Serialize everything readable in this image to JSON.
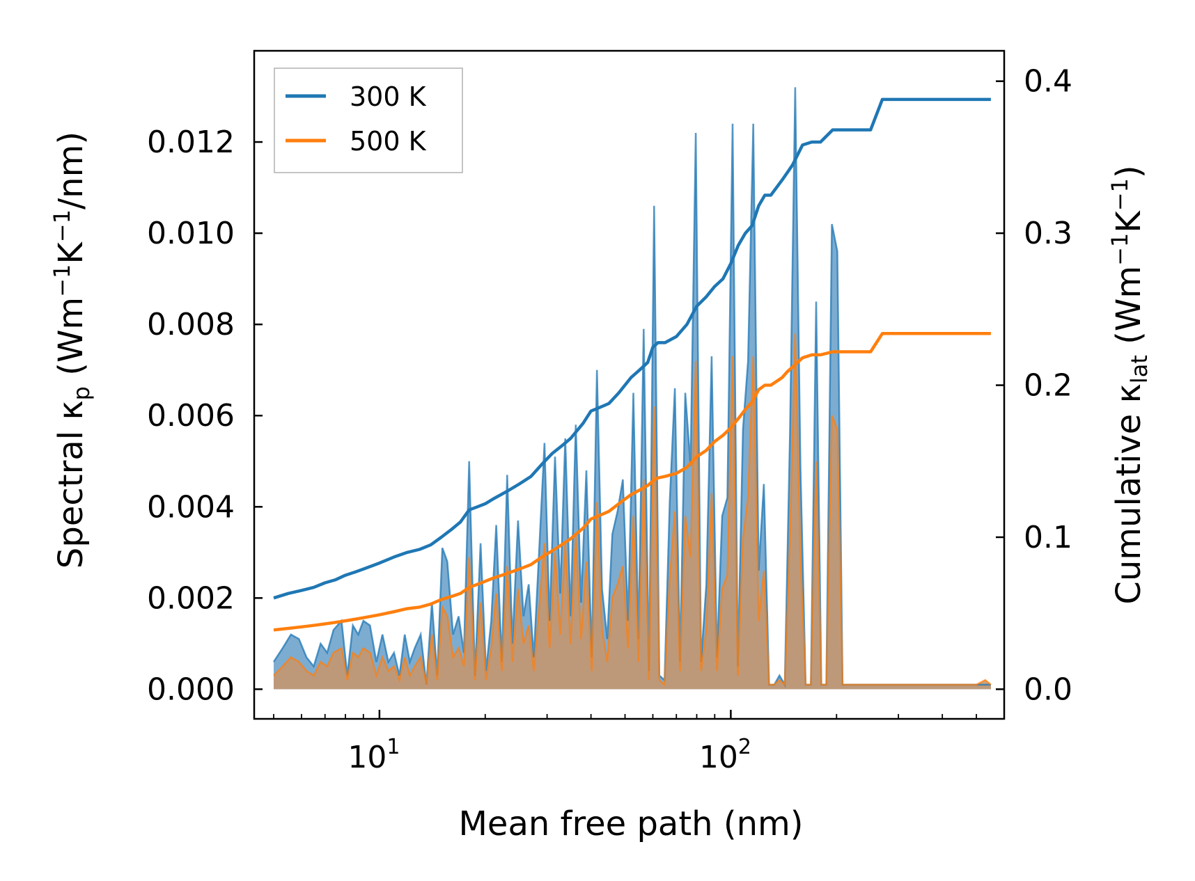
{
  "chart_data": {
    "type": "line",
    "xscale": "log",
    "xlabel": "Mean free path (nm)",
    "ylabel_left": {
      "main": "Spectral κ",
      "sub": "p",
      "units": " (Wm",
      "sup1": "−1",
      "k": "K",
      "sup2": "−1",
      "end": "/nm)"
    },
    "ylabel_right": {
      "main": "Cumulative κ",
      "sub": "lat",
      "units": " (Wm",
      "sup1": "−1",
      "k": "K",
      "sup2": "−1",
      "end": ")"
    },
    "xlim": [
      4.4,
      600
    ],
    "ylim_left": [
      -0.00065,
      0.014
    ],
    "ylim_right": [
      -0.0195,
      0.42
    ],
    "x_ticks": [
      {
        "value": 10,
        "base": "10",
        "exp": "1"
      },
      {
        "value": 100,
        "base": "10",
        "exp": "2"
      }
    ],
    "y_ticks_left": [
      "0.000",
      "0.002",
      "0.004",
      "0.006",
      "0.008",
      "0.010",
      "0.012"
    ],
    "y_ticks_right": [
      "0.0",
      "0.1",
      "0.2",
      "0.3",
      "0.4"
    ],
    "legend": {
      "position": "top-left",
      "entries": [
        "300 K",
        "500 K"
      ]
    },
    "colors": {
      "s300": "#1f77b4",
      "s500": "#ff7f0e",
      "fill300": "#6fa3cc",
      "fill500": "#c8956b"
    },
    "series": [
      {
        "name": "300 K",
        "cumulative": {
          "x": [
            5,
            5.5,
            6,
            6.5,
            7,
            7.5,
            8,
            8.5,
            9,
            10,
            11,
            12,
            13,
            14,
            15,
            16,
            17,
            18,
            19,
            20,
            21,
            23,
            25,
            27,
            29,
            31,
            33,
            35,
            38,
            40,
            42,
            45,
            48,
            52,
            55,
            58,
            60,
            62,
            65,
            70,
            75,
            80,
            85,
            90,
            95,
            100,
            105,
            110,
            115,
            120,
            125,
            130,
            140,
            145,
            150,
            160,
            170,
            180,
            195,
            200,
            250,
            270,
            550
          ],
          "y": [
            0.06,
            0.063,
            0.065,
            0.067,
            0.07,
            0.072,
            0.075,
            0.077,
            0.079,
            0.083,
            0.087,
            0.09,
            0.092,
            0.095,
            0.1,
            0.105,
            0.11,
            0.118,
            0.12,
            0.122,
            0.125,
            0.13,
            0.135,
            0.14,
            0.148,
            0.155,
            0.16,
            0.165,
            0.175,
            0.183,
            0.185,
            0.188,
            0.195,
            0.205,
            0.21,
            0.215,
            0.225,
            0.228,
            0.228,
            0.232,
            0.24,
            0.252,
            0.258,
            0.265,
            0.27,
            0.28,
            0.292,
            0.3,
            0.305,
            0.318,
            0.325,
            0.325,
            0.335,
            0.34,
            0.345,
            0.358,
            0.36,
            0.36,
            0.368,
            0.368,
            0.368,
            0.388,
            0.388
          ]
        },
        "spectral": {
          "x": [
            5,
            5.3,
            5.6,
            5.9,
            6.2,
            6.5,
            6.8,
            7.1,
            7.4,
            7.8,
            8.1,
            8.4,
            8.7,
            9,
            9.4,
            9.8,
            10.2,
            10.6,
            11,
            11.4,
            11.8,
            12.2,
            12.6,
            13.1,
            13.6,
            14.1,
            14.6,
            15.1,
            15.6,
            16.2,
            16.8,
            17.4,
            18,
            18.7,
            19.4,
            20.1,
            20.8,
            21.5,
            22.3,
            23.1,
            23.9,
            24.8,
            25.7,
            26.6,
            27.5,
            28.5,
            29.5,
            30.5,
            31.6,
            32.7,
            33.8,
            35,
            36.2,
            37.5,
            38.8,
            40.2,
            41.6,
            43,
            44.5,
            46,
            47.6,
            49.3,
            51,
            52.8,
            54.6,
            56.5,
            58.5,
            60.5,
            62.6,
            64.8,
            67,
            69.3,
            71.7,
            74.2,
            76.8,
            79.5,
            82.3,
            85.2,
            88.2,
            91.3,
            94.5,
            97.8,
            101.2,
            104.7,
            108.3,
            112,
            115.9,
            120,
            124.2,
            128.5,
            133,
            137.6,
            142.4,
            147.4,
            152.5,
            157.8,
            163.3,
            169,
            175,
            181,
            187,
            194,
            201,
            208,
            215,
            223,
            231,
            239,
            247,
            256,
            265,
            274,
            284,
            300,
            400,
            500,
            530,
            550
          ],
          "y": [
            0.0006,
            0.0009,
            0.0012,
            0.0011,
            0.0007,
            0.0005,
            0.001,
            0.0008,
            0.0013,
            0.0015,
            0.0003,
            0.0014,
            0.0012,
            0.0015,
            0.0014,
            0.0006,
            0.0012,
            0.0006,
            0.0008,
            0.0003,
            0.0012,
            0.0006,
            0.0009,
            0.0012,
            0.0001,
            0.0019,
            0.0003,
            0.0031,
            0.0028,
            0.0012,
            0.0016,
            0.0008,
            0.005,
            0.0003,
            0.0032,
            0.0004,
            0.0015,
            0.0036,
            0.0006,
            0.0047,
            0.001,
            0.0037,
            0.0016,
            0.0023,
            0.0007,
            0.0031,
            0.0054,
            0.0015,
            0.0051,
            0.0021,
            0.0055,
            0.0016,
            0.0058,
            0.0019,
            0.0048,
            0.0007,
            0.007,
            0.0022,
            0.0011,
            0.0034,
            0.0039,
            0.0046,
            0.0015,
            0.0065,
            0.0011,
            0.0079,
            0.0004,
            0.0106,
            0.0003,
            0.0002,
            0.0041,
            0.0066,
            0.0006,
            0.0065,
            0.0049,
            0.0122,
            0.0006,
            0.0023,
            0.0073,
            0.0007,
            0.0038,
            0.0042,
            0.0124,
            0.0005,
            0.0057,
            0.0072,
            0.0124,
            0.0026,
            0.0045,
            0.0001,
            0.0001,
            0.0003,
            0.0001,
            0.0056,
            0.0132,
            0.0049,
            0.0001,
            0.0001,
            0.0085,
            0.0001,
            0.0001,
            0.0102,
            0.0096,
            0.0001,
            0.0001,
            0.0001,
            0.0001,
            0.0001,
            0.0001,
            0.0001,
            0.0001,
            0.0001,
            0.0001,
            0.0001,
            0.0001,
            0.0001,
            0.0001,
            0.0001
          ]
        }
      },
      {
        "name": "500 K",
        "cumulative": {
          "x": [
            5,
            5.5,
            6,
            6.5,
            7,
            7.5,
            8,
            8.5,
            9,
            10,
            11,
            12,
            13,
            14,
            15,
            16,
            17,
            18,
            19,
            20,
            21,
            23,
            25,
            27,
            29,
            31,
            33,
            35,
            38,
            40,
            42,
            45,
            48,
            52,
            55,
            58,
            60,
            62,
            65,
            70,
            75,
            80,
            85,
            90,
            95,
            100,
            105,
            110,
            115,
            120,
            125,
            130,
            140,
            145,
            150,
            160,
            170,
            180,
            195,
            200,
            250,
            270,
            550
          ],
          "y": [
            0.039,
            0.04,
            0.041,
            0.042,
            0.043,
            0.044,
            0.045,
            0.046,
            0.047,
            0.049,
            0.051,
            0.053,
            0.054,
            0.056,
            0.059,
            0.061,
            0.063,
            0.067,
            0.069,
            0.071,
            0.073,
            0.076,
            0.079,
            0.082,
            0.087,
            0.091,
            0.095,
            0.099,
            0.106,
            0.112,
            0.114,
            0.117,
            0.122,
            0.128,
            0.131,
            0.134,
            0.137,
            0.139,
            0.14,
            0.142,
            0.146,
            0.153,
            0.157,
            0.163,
            0.167,
            0.172,
            0.178,
            0.184,
            0.189,
            0.197,
            0.2,
            0.2,
            0.205,
            0.209,
            0.212,
            0.218,
            0.22,
            0.22,
            0.222,
            0.222,
            0.222,
            0.234,
            0.234
          ]
        },
        "spectral": {
          "x": [
            5,
            5.3,
            5.6,
            5.9,
            6.2,
            6.5,
            6.8,
            7.1,
            7.4,
            7.8,
            8.1,
            8.4,
            8.7,
            9,
            9.4,
            9.8,
            10.2,
            10.6,
            11,
            11.4,
            11.8,
            12.2,
            12.6,
            13.1,
            13.6,
            14.1,
            14.6,
            15.1,
            15.6,
            16.2,
            16.8,
            17.4,
            18,
            18.7,
            19.4,
            20.1,
            20.8,
            21.5,
            22.3,
            23.1,
            23.9,
            24.8,
            25.7,
            26.6,
            27.5,
            28.5,
            29.5,
            30.5,
            31.6,
            32.7,
            33.8,
            35,
            36.2,
            37.5,
            38.8,
            40.2,
            41.6,
            43,
            44.5,
            46,
            47.6,
            49.3,
            51,
            52.8,
            54.6,
            56.5,
            58.5,
            60.5,
            62.6,
            64.8,
            67,
            69.3,
            71.7,
            74.2,
            76.8,
            79.5,
            82.3,
            85.2,
            88.2,
            91.3,
            94.5,
            97.8,
            101.2,
            104.7,
            108.3,
            112,
            115.9,
            120,
            124.2,
            128.5,
            133,
            137.6,
            142.4,
            147.4,
            152.5,
            157.8,
            163.3,
            169,
            175,
            181,
            187,
            194,
            201,
            208,
            215,
            223,
            231,
            239,
            247,
            256,
            265,
            274,
            284,
            300,
            400,
            500,
            530,
            550
          ],
          "y": [
            0.0003,
            0.0005,
            0.0007,
            0.0006,
            0.0004,
            0.0003,
            0.0006,
            0.0005,
            0.0008,
            0.0009,
            0.0002,
            0.0008,
            0.0007,
            0.0009,
            0.0008,
            0.0003,
            0.0007,
            0.0004,
            0.0005,
            0.0002,
            0.0007,
            0.0003,
            0.0005,
            0.0007,
            0.0001,
            0.0012,
            0.0002,
            0.0018,
            0.0016,
            0.0007,
            0.0009,
            0.0005,
            0.0029,
            0.0002,
            0.0019,
            0.0002,
            0.0009,
            0.0021,
            0.0004,
            0.0027,
            0.0006,
            0.0022,
            0.001,
            0.0014,
            0.0004,
            0.0018,
            0.0032,
            0.0009,
            0.003,
            0.0012,
            0.0032,
            0.001,
            0.0034,
            0.0011,
            0.0028,
            0.0004,
            0.0041,
            0.0013,
            0.0006,
            0.002,
            0.0023,
            0.0027,
            0.0009,
            0.0038,
            0.0006,
            0.0046,
            0.0002,
            0.0062,
            0.0002,
            0.0001,
            0.0024,
            0.0039,
            0.0004,
            0.0038,
            0.0029,
            0.0072,
            0.0004,
            0.0013,
            0.0043,
            0.0004,
            0.0022,
            0.0025,
            0.0073,
            0.0003,
            0.0033,
            0.0042,
            0.0073,
            0.0015,
            0.0026,
            0.0001,
            0.0001,
            0.0002,
            0.0001,
            0.0033,
            0.0078,
            0.0029,
            0.0001,
            0.0001,
            0.005,
            0.0001,
            0.0001,
            0.006,
            0.0057,
            0.0001,
            0.0001,
            0.0001,
            0.0001,
            0.0001,
            0.0001,
            0.0001,
            0.0001,
            0.0001,
            0.0001,
            0.0001,
            0.0001,
            0.0001,
            0.0002,
            0.0001
          ]
        }
      }
    ]
  }
}
